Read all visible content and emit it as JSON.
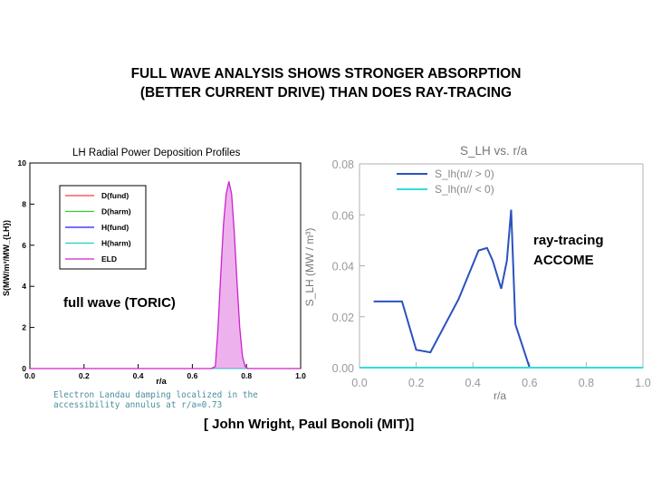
{
  "slide": {
    "title_line1": "FULL WAVE ANALYSIS SHOWS STRONGER ABSORPTION",
    "title_line2": "(BETTER CURRENT DRIVE) THAN DOES RAY-TRACING",
    "credit": "[ John Wright, Paul Bonoli (MIT)]",
    "full_wave_label": "full wave (TORIC)",
    "ray_label_line1": "ray-tracing",
    "ray_label_line2": "ACCOME"
  },
  "chart_data": [
    {
      "type": "line",
      "title": "LH Radial Power Deposition Profiles",
      "xlabel": "r/a",
      "ylabel": "S(MW/m³/MW_{LH})",
      "xlim": [
        0.0,
        1.0
      ],
      "ylim": [
        0,
        10
      ],
      "x_ticks": [
        "0.0",
        "0.2",
        "0.4",
        "0.6",
        "0.8",
        "1.0"
      ],
      "y_ticks": [
        "0",
        "2",
        "4",
        "6",
        "8",
        "10"
      ],
      "legend": [
        "D(fund)",
        "D(harm)",
        "H(fund)",
        "H(harm)",
        "ELD"
      ],
      "legend_colors": [
        "#ff3b3b",
        "#33cc33",
        "#1a1aff",
        "#22cccc",
        "#cc22cc"
      ],
      "legend_placement": "upper-left",
      "annotation_line1": "Electron Landau damping localized in the",
      "annotation_line2": "accessibility annulus at r/a=0.73",
      "series": [
        {
          "name": "D(fund)",
          "x": [
            0.0,
            1.0
          ],
          "y": [
            0,
            0
          ]
        },
        {
          "name": "D(harm)",
          "x": [
            0.0,
            1.0
          ],
          "y": [
            0,
            0
          ]
        },
        {
          "name": "H(fund)",
          "x": [
            0.0,
            1.0
          ],
          "y": [
            0,
            0
          ]
        },
        {
          "name": "H(harm)",
          "x": [
            0.0,
            1.0
          ],
          "y": [
            0,
            0
          ]
        },
        {
          "name": "ELD",
          "x": [
            0.0,
            0.67,
            0.685,
            0.695,
            0.705,
            0.715,
            0.725,
            0.735,
            0.745,
            0.755,
            0.765,
            0.775,
            0.785,
            0.795,
            0.805,
            1.0
          ],
          "y": [
            0,
            0,
            0.1,
            2.0,
            4.6,
            7.0,
            8.5,
            9.1,
            8.5,
            6.6,
            4.2,
            2.0,
            0.6,
            0.1,
            0,
            0
          ]
        }
      ]
    },
    {
      "type": "line",
      "title": "S_LH vs. r/a",
      "xlabel": "r/a",
      "ylabel": "S_LH (MW / m³)",
      "xlim": [
        0.0,
        1.0
      ],
      "ylim": [
        0.0,
        0.08
      ],
      "x_ticks": [
        "0.0",
        "0.2",
        "0.4",
        "0.6",
        "0.8",
        "1.0"
      ],
      "y_ticks": [
        "0.00",
        "0.02",
        "0.04",
        "0.06",
        "0.08"
      ],
      "legend": [
        "S_lh(n// > 0)",
        "S_lh(n// < 0)"
      ],
      "legend_colors": [
        "#2a52be",
        "#33dddd"
      ],
      "legend_placement": "upper-left",
      "series": [
        {
          "name": "S_lh(n// > 0)",
          "x": [
            0.05,
            0.15,
            0.2,
            0.25,
            0.35,
            0.42,
            0.45,
            0.47,
            0.5,
            0.52,
            0.535,
            0.55,
            0.6
          ],
          "y": [
            0.026,
            0.026,
            0.007,
            0.006,
            0.027,
            0.046,
            0.047,
            0.042,
            0.031,
            0.042,
            0.062,
            0.017,
            0.0
          ]
        },
        {
          "name": "S_lh(n// < 0)",
          "x": [
            0.0,
            1.0
          ],
          "y": [
            0,
            0
          ]
        }
      ]
    }
  ]
}
